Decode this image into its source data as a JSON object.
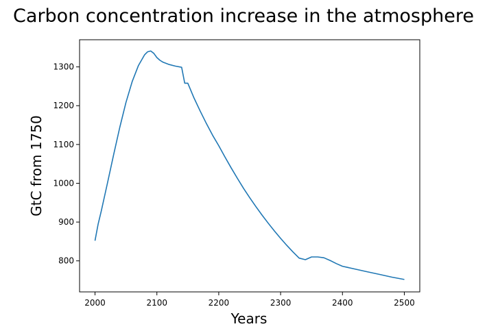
{
  "chart_data": {
    "type": "line",
    "title": "Carbon concentration increase in the atmosphere",
    "xlabel": "Years",
    "ylabel": "GtC from 1750",
    "xlim": [
      1975,
      2525
    ],
    "ylim": [
      720,
      1370
    ],
    "xticks": [
      2000,
      2100,
      2200,
      2300,
      2400,
      2500
    ],
    "yticks": [
      800,
      900,
      1000,
      1100,
      1200,
      1300
    ],
    "grid": false,
    "line_color": "#1f77b4",
    "series": [
      {
        "x": [
          2000,
          2005,
          2010,
          2020,
          2030,
          2040,
          2050,
          2060,
          2070,
          2080,
          2085,
          2090,
          2095,
          2100,
          2105,
          2110,
          2120,
          2130,
          2140,
          2145,
          2150,
          2160,
          2170,
          2180,
          2190,
          2200,
          2210,
          2220,
          2230,
          2240,
          2250,
          2260,
          2270,
          2280,
          2290,
          2300,
          2310,
          2320,
          2330,
          2340,
          2350,
          2360,
          2370,
          2380,
          2390,
          2400,
          2420,
          2440,
          2460,
          2480,
          2500
        ],
        "y": [
          852,
          895,
          928,
          1000,
          1073,
          1144,
          1208,
          1262,
          1303,
          1331,
          1339,
          1341,
          1335,
          1324,
          1317,
          1312,
          1306,
          1302,
          1299,
          1258,
          1258,
          1220,
          1186,
          1154,
          1124,
          1097,
          1068,
          1040,
          1013,
          987,
          963,
          940,
          918,
          897,
          877,
          858,
          840,
          823,
          807,
          803,
          810,
          810,
          808,
          801,
          793,
          786,
          779,
          772,
          765,
          758,
          752
        ]
      }
    ]
  }
}
